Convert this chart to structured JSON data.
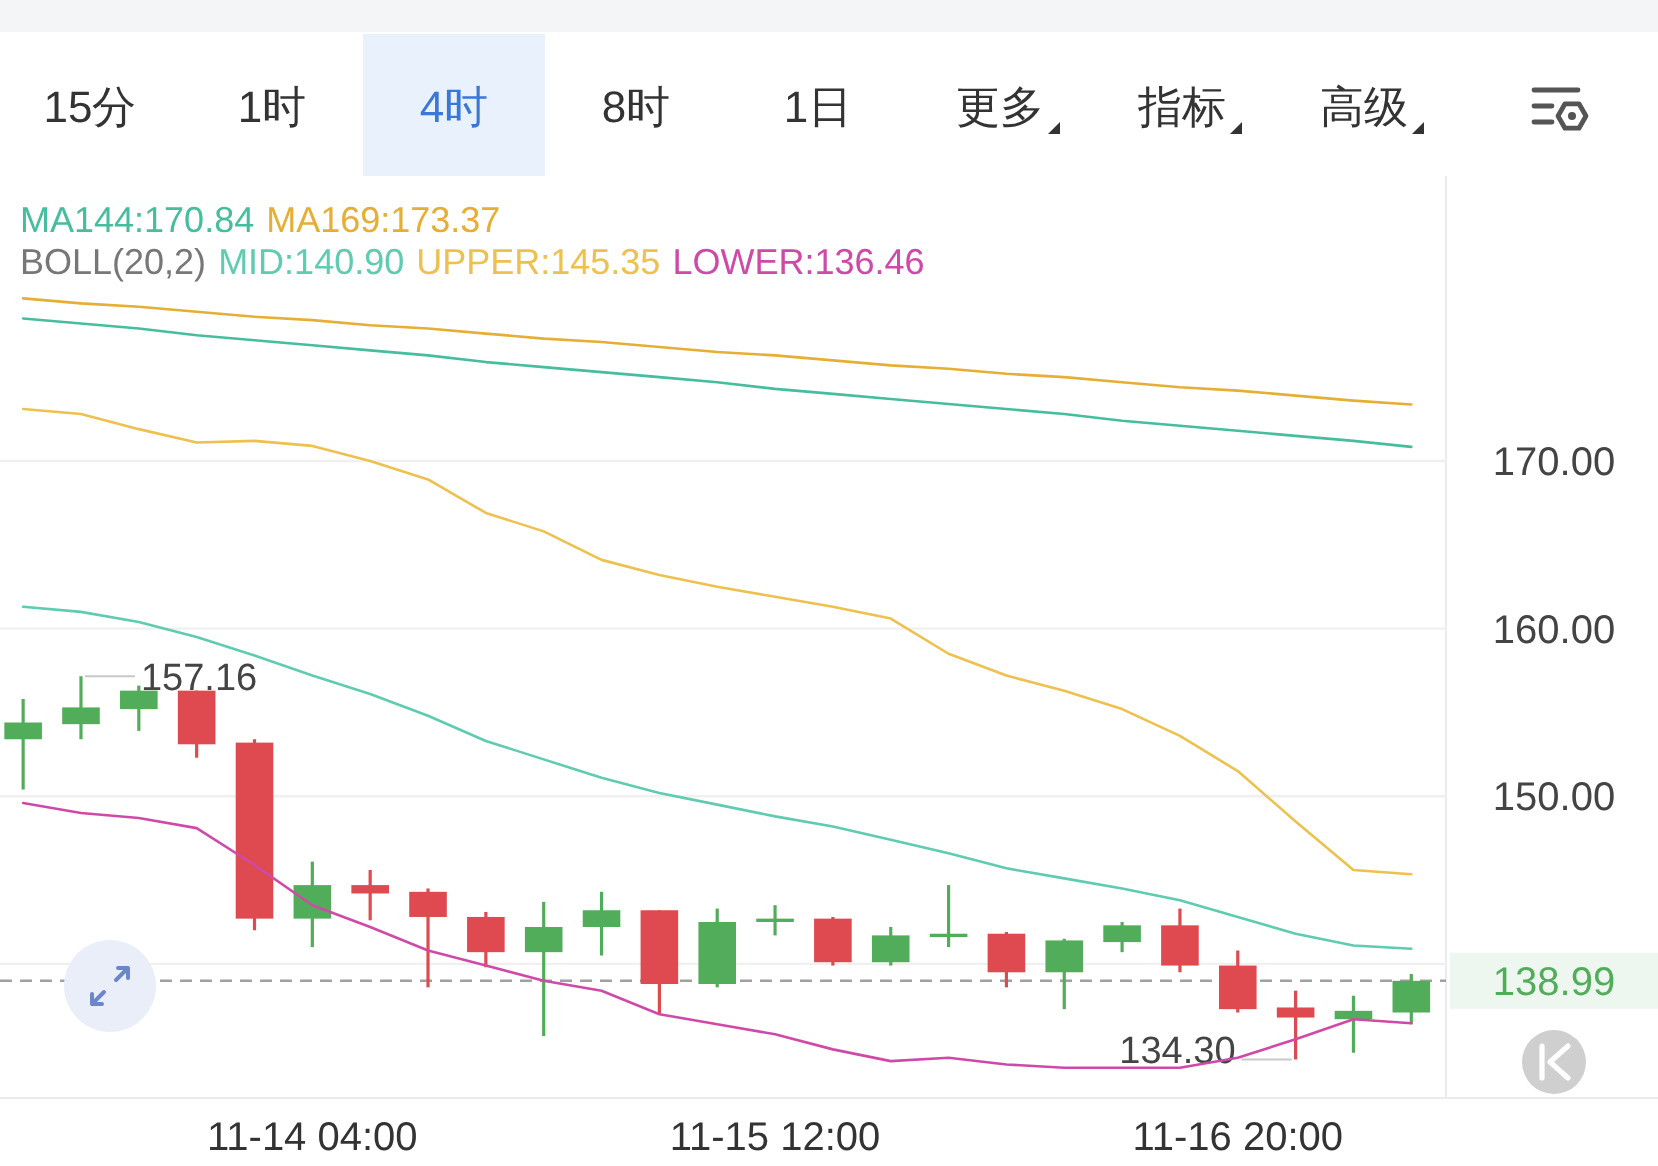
{
  "chart_data": {
    "type": "candlestick",
    "categories": [
      null,
      null,
      null,
      null,
      null,
      "11-14 04:00",
      null,
      null,
      null,
      null,
      null,
      null,
      null,
      "11-15 12:00",
      null,
      null,
      null,
      null,
      null,
      null,
      null,
      "11-16 20:00",
      null,
      null,
      null
    ],
    "ohlc": [
      [
        153.4,
        155.8,
        150.4,
        154.4
      ],
      [
        154.3,
        157.16,
        153.4,
        155.3
      ],
      [
        155.2,
        156.6,
        153.9,
        156.3
      ],
      [
        156.3,
        156.3,
        152.3,
        153.1
      ],
      [
        153.2,
        153.4,
        142.0,
        142.7
      ],
      [
        142.7,
        146.1,
        141.0,
        144.7
      ],
      [
        144.7,
        145.6,
        142.6,
        144.2
      ],
      [
        144.3,
        144.5,
        138.6,
        142.8
      ],
      [
        142.8,
        143.1,
        139.8,
        140.7
      ],
      [
        140.7,
        143.7,
        135.7,
        142.2
      ],
      [
        142.2,
        144.3,
        140.5,
        143.2
      ],
      [
        143.2,
        143.2,
        137.0,
        138.8
      ],
      [
        138.8,
        143.3,
        138.6,
        142.5
      ],
      [
        142.5,
        143.5,
        141.7,
        142.7
      ],
      [
        142.7,
        142.8,
        139.9,
        140.1
      ],
      [
        140.1,
        142.2,
        139.9,
        141.7
      ],
      [
        141.6,
        144.7,
        141.0,
        141.8
      ],
      [
        141.8,
        141.9,
        138.6,
        139.5
      ],
      [
        139.5,
        141.5,
        137.3,
        141.4
      ],
      [
        141.3,
        142.5,
        140.7,
        142.3
      ],
      [
        142.3,
        143.3,
        139.5,
        139.9
      ],
      [
        139.9,
        140.8,
        137.1,
        137.3
      ],
      [
        137.4,
        138.4,
        134.3,
        136.8
      ],
      [
        136.7,
        138.1,
        134.7,
        137.2
      ],
      [
        137.1,
        139.4,
        136.4,
        138.99
      ]
    ],
    "colors": [
      "#52ad5a",
      "#52ad5a",
      "#52ad5a",
      "#de4a4f",
      "#de4a4f",
      "#52ad5a",
      "#de4a4f",
      "#de4a4f",
      "#de4a4f",
      "#52ad5a",
      "#52ad5a",
      "#de4a4f",
      "#52ad5a",
      "#52ad5a",
      "#de4a4f",
      "#52ad5a",
      "#52ad5a",
      "#de4a4f",
      "#52ad5a",
      "#52ad5a",
      "#de4a4f",
      "#de4a4f",
      "#de4a4f",
      "#52ad5a",
      "#52ad5a"
    ],
    "series": [
      {
        "type": "line",
        "name": "MA144:170.84",
        "color": "#46bd9c",
        "values": [
          178.5,
          178.2,
          177.9,
          177.5,
          177.2,
          176.9,
          176.6,
          176.3,
          175.9,
          175.6,
          175.3,
          175.0,
          174.7,
          174.3,
          174.0,
          173.7,
          173.4,
          173.1,
          172.8,
          172.4,
          172.1,
          171.8,
          171.5,
          171.2,
          170.84
        ]
      },
      {
        "type": "line",
        "name": "MA169:173.37",
        "color": "#e6ae34",
        "values": [
          179.7,
          179.4,
          179.2,
          178.9,
          178.6,
          178.4,
          178.1,
          177.9,
          177.6,
          177.3,
          177.1,
          176.8,
          176.5,
          176.3,
          176.0,
          175.7,
          175.5,
          175.2,
          175.0,
          174.7,
          174.4,
          174.2,
          173.9,
          173.6,
          173.37
        ]
      },
      {
        "type": "line",
        "name": "MID:140.90",
        "color": "#5fcbb0",
        "values": [
          161.3,
          161.0,
          160.4,
          159.5,
          158.4,
          157.2,
          156.1,
          154.8,
          153.3,
          152.2,
          151.1,
          150.2,
          149.5,
          148.8,
          148.2,
          147.4,
          146.6,
          145.7,
          145.1,
          144.5,
          143.8,
          142.8,
          141.8,
          141.1,
          140.9
        ]
      },
      {
        "type": "line",
        "name": "UPPER:145.35",
        "color": "#eec04e",
        "values": [
          173.1,
          172.8,
          171.9,
          171.1,
          171.2,
          170.9,
          170.0,
          168.9,
          166.9,
          165.8,
          164.1,
          163.2,
          162.5,
          161.9,
          161.3,
          160.6,
          158.5,
          157.2,
          156.3,
          155.2,
          153.6,
          151.5,
          148.5,
          145.6,
          145.35
        ]
      },
      {
        "type": "line",
        "name": "LOWER:136.46",
        "color": "#cf4aa8",
        "values": [
          149.6,
          149.0,
          148.7,
          148.1,
          145.9,
          143.5,
          142.2,
          140.8,
          139.9,
          139.0,
          138.4,
          137.0,
          136.4,
          135.8,
          134.9,
          134.2,
          134.4,
          134.0,
          133.8,
          133.8,
          133.8,
          134.4,
          135.5,
          136.7,
          136.46
        ]
      }
    ],
    "legend": "top",
    "legend_title": "BOLL(20,2)",
    "ylim": [
      132,
      187
    ],
    "yticks": [
      {
        "value": 140,
        "label": null
      },
      {
        "value": 150,
        "label": "150.00"
      },
      {
        "value": 160,
        "label": "160.00"
      },
      {
        "value": 170,
        "label": "170.00"
      }
    ],
    "grid": "y",
    "ref_lines": [
      {
        "axis": "y",
        "value": 138.99,
        "label": "138.99",
        "color": "#a0a0a0",
        "line_style": "dashed"
      }
    ],
    "annotations": [
      "15分",
      "1时",
      "4时",
      "8时",
      "1日",
      "更多",
      "指标",
      "高级",
      "157.16",
      "134.30"
    ]
  }
}
